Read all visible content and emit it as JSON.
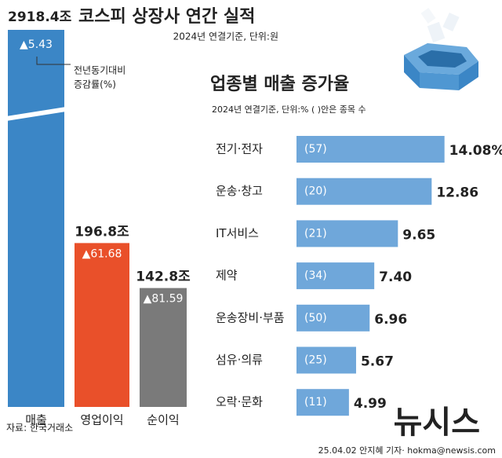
{
  "chart_data": [
    {
      "type": "bar",
      "title": "코스피 상장사 연간 실적",
      "subtitle": "2024년 연결기준, 단위:원",
      "categories": [
        "매출",
        "영업이익",
        "순이익"
      ],
      "values": [
        2918.4,
        196.8,
        142.8
      ],
      "value_labels": [
        "2918.4조",
        "196.8조",
        "142.8조"
      ],
      "change_labels": [
        "▲5.43",
        "▲61.68",
        "▲81.59"
      ],
      "annotation": [
        "전년동기대비",
        "증감률(%)"
      ],
      "colors": [
        "#3b86c6",
        "#e9502a",
        "#7a7a7a"
      ]
    },
    {
      "type": "barh",
      "title": "업종별 매출 증가율",
      "subtitle": "2024년 연결기준, 단위:% ( )안은 종목 수",
      "categories": [
        "전기·전자",
        "운송·창고",
        "IT서비스",
        "제약",
        "운송장비·부품",
        "섬유·의류",
        "오락·문화"
      ],
      "values": [
        14.08,
        12.86,
        9.65,
        7.4,
        6.96,
        5.67,
        4.99
      ],
      "value_labels": [
        "14.08%",
        "12.86",
        "9.65",
        "7.40",
        "6.96",
        "5.67",
        "4.99"
      ],
      "count_labels": [
        "(57)",
        "(20)",
        "(21)",
        "(34)",
        "(50)",
        "(25)",
        "(11)"
      ],
      "color": "#6fa7da"
    }
  ],
  "source": "자료: 한국거래소",
  "credit": "25.04.02 안지혜 기자· hokma@newsis.com",
  "watermark": "뉴시스"
}
